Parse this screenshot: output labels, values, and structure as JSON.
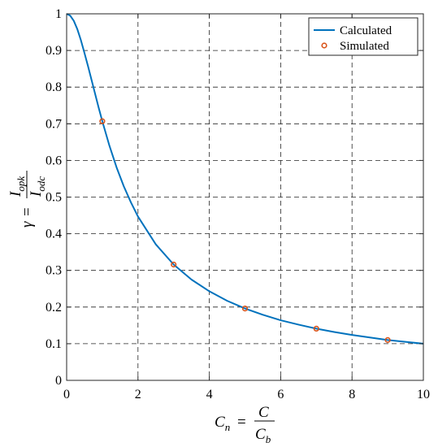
{
  "chart_data": {
    "type": "line",
    "xlabel": {
      "lhs_main": "C",
      "lhs_sub": "n",
      "equals": "=",
      "numerator": "C",
      "denominator_main": "C",
      "denominator_sub": "b"
    },
    "ylabel": {
      "lhs": "γ",
      "equals": "=",
      "numerator_main": "I",
      "numerator_sub": "opk",
      "denominator_main": "I",
      "denominator_sub": "odc"
    },
    "xlim": [
      0,
      10
    ],
    "ylim": [
      0,
      1
    ],
    "x_ticks": [
      "0",
      "2",
      "4",
      "6",
      "8",
      "10"
    ],
    "y_ticks": [
      "0",
      "0.1",
      "0.2",
      "0.3",
      "0.4",
      "0.5",
      "0.6",
      "0.7",
      "0.8",
      "0.9",
      "1"
    ],
    "grid": true,
    "legend_position": "top-right",
    "series": [
      {
        "name": "Calculated",
        "style": "line",
        "color": "#0072BD",
        "x": [
          0,
          0.1,
          0.2,
          0.3,
          0.4,
          0.5,
          0.6,
          0.7,
          0.8,
          0.9,
          1.0,
          1.2,
          1.4,
          1.6,
          1.8,
          2.0,
          2.5,
          3.0,
          3.5,
          4.0,
          4.5,
          5.0,
          5.5,
          6.0,
          6.5,
          7.0,
          7.5,
          8.0,
          8.5,
          9.0,
          9.5,
          10.0
        ],
        "y": [
          1.0,
          0.995,
          0.981,
          0.958,
          0.928,
          0.893,
          0.857,
          0.819,
          0.781,
          0.743,
          0.707,
          0.64,
          0.581,
          0.53,
          0.486,
          0.447,
          0.371,
          0.316,
          0.275,
          0.243,
          0.217,
          0.196,
          0.179,
          0.164,
          0.152,
          0.141,
          0.132,
          0.124,
          0.117,
          0.11,
          0.105,
          0.1
        ]
      },
      {
        "name": "Simulated",
        "style": "markers",
        "color": "#D95319",
        "x": [
          1,
          3,
          5,
          7,
          9
        ],
        "y": [
          0.707,
          0.316,
          0.196,
          0.141,
          0.11
        ]
      }
    ]
  }
}
